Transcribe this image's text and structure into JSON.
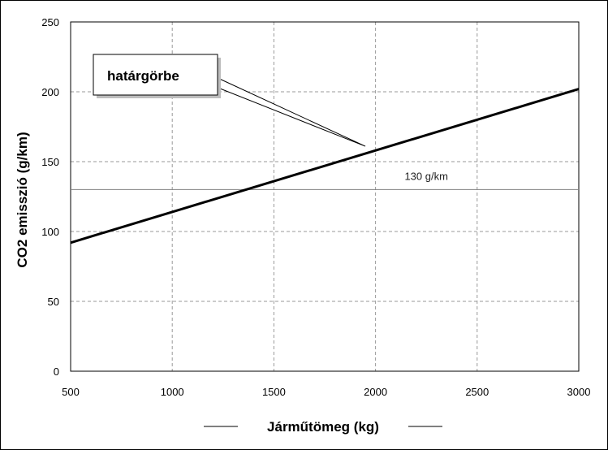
{
  "chart_data": {
    "type": "line",
    "xlabel": "Járműtömeg (kg)",
    "ylabel": "CO2 emisszió (g/km)",
    "xlim": [
      500,
      3000
    ],
    "ylim": [
      0,
      250
    ],
    "x_ticks": [
      500,
      1000,
      1500,
      2000,
      2500,
      3000
    ],
    "y_ticks": [
      0,
      50,
      100,
      150,
      200,
      250
    ],
    "grid": true,
    "grid_style": "dashed",
    "series": [
      {
        "x": [
          500,
          3000
        ],
        "y": [
          92,
          202
        ],
        "color": "#000000"
      }
    ],
    "reference_lines": [
      {
        "y": 130,
        "label": "130 g/km",
        "color": "#808080"
      }
    ],
    "annotations": [
      {
        "text": "határgörbe",
        "points_to": {
          "x": 1950,
          "y": 161
        }
      }
    ]
  }
}
